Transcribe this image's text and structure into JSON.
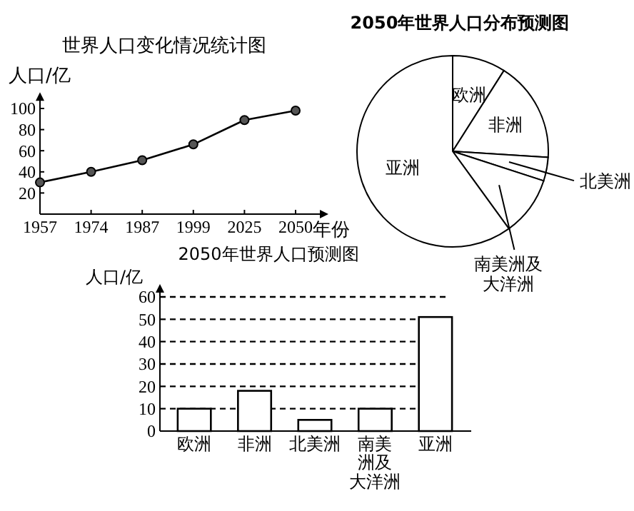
{
  "chart_data": [
    {
      "type": "line",
      "title": "世界人口变化情况统计图",
      "xlabel": "年份",
      "ylabel": "人口/亿",
      "categories": [
        "1957",
        "1974",
        "1987",
        "1999",
        "2025",
        "2050"
      ],
      "values": [
        30,
        40,
        51,
        66,
        89,
        98
      ],
      "color": "#000000",
      "ylim": [
        0,
        110
      ],
      "yticks": [
        20,
        40,
        60,
        80,
        100
      ],
      "marker": "circle",
      "line_style": "solid",
      "grid": false
    },
    {
      "type": "pie",
      "title": "2050年世界人口分布预测图",
      "categories": [
        "欧洲",
        "非洲",
        "北美洲",
        "南美洲及大洋洲",
        "亚洲"
      ],
      "values": [
        9,
        17,
        4,
        10,
        60
      ],
      "colors": [
        "#ffffff",
        "#ffffff",
        "#ffffff",
        "#ffffff",
        "#ffffff"
      ]
    },
    {
      "type": "bar",
      "title": "2050年世界人口预测图",
      "ylabel": "人口/亿",
      "categories": [
        "欧洲",
        "非洲",
        "北美洲",
        "南美洲及大洋洲",
        "亚洲"
      ],
      "values": [
        10,
        18,
        5,
        10,
        51
      ],
      "color": "#ffffff",
      "ylim": [
        0,
        60
      ],
      "yticks": [
        0,
        10,
        20,
        30,
        40,
        50,
        60
      ],
      "grid": "y"
    }
  ]
}
